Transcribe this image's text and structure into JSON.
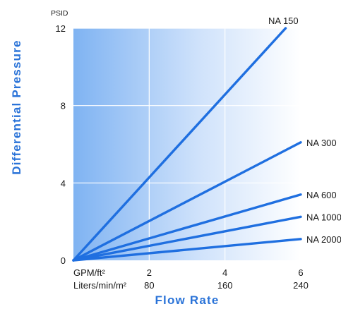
{
  "chart_data": {
    "type": "line",
    "xlabel": "Flow Rate",
    "ylabel": "Differential Pressure",
    "y_unit": "PSID",
    "x_unit_primary": "GPM/ft²",
    "x_unit_secondary": "Liters/min/m²",
    "xlim": [
      0,
      6
    ],
    "ylim": [
      0,
      12
    ],
    "x_ticks": [
      {
        "primary": "2",
        "secondary": "80",
        "value": 2
      },
      {
        "primary": "4",
        "secondary": "160",
        "value": 4
      },
      {
        "primary": "6",
        "secondary": "240",
        "value": 6
      }
    ],
    "y_ticks": [
      {
        "label": "0",
        "value": 0
      },
      {
        "label": "4",
        "value": 4
      },
      {
        "label": "8",
        "value": 8
      },
      {
        "label": "12",
        "value": 12
      }
    ],
    "grid": true,
    "series": [
      {
        "name": "NA 150",
        "x": [
          0,
          5.6
        ],
        "y": [
          0,
          12
        ]
      },
      {
        "name": "NA 300",
        "x": [
          0,
          6
        ],
        "y": [
          0,
          6.1
        ]
      },
      {
        "name": "NA 600",
        "x": [
          0,
          6
        ],
        "y": [
          0,
          3.4
        ]
      },
      {
        "name": "NA 1000",
        "x": [
          0,
          6
        ],
        "y": [
          0,
          2.25
        ]
      },
      {
        "name": "NA 2000",
        "x": [
          0,
          6
        ],
        "y": [
          0,
          1.1
        ]
      }
    ],
    "colors": {
      "line": "#1f6fe0",
      "axis_title": "#2a73d8",
      "bg_left": "#7fb3f2",
      "bg_right": "#ffffff",
      "grid": "#ffffff"
    }
  }
}
